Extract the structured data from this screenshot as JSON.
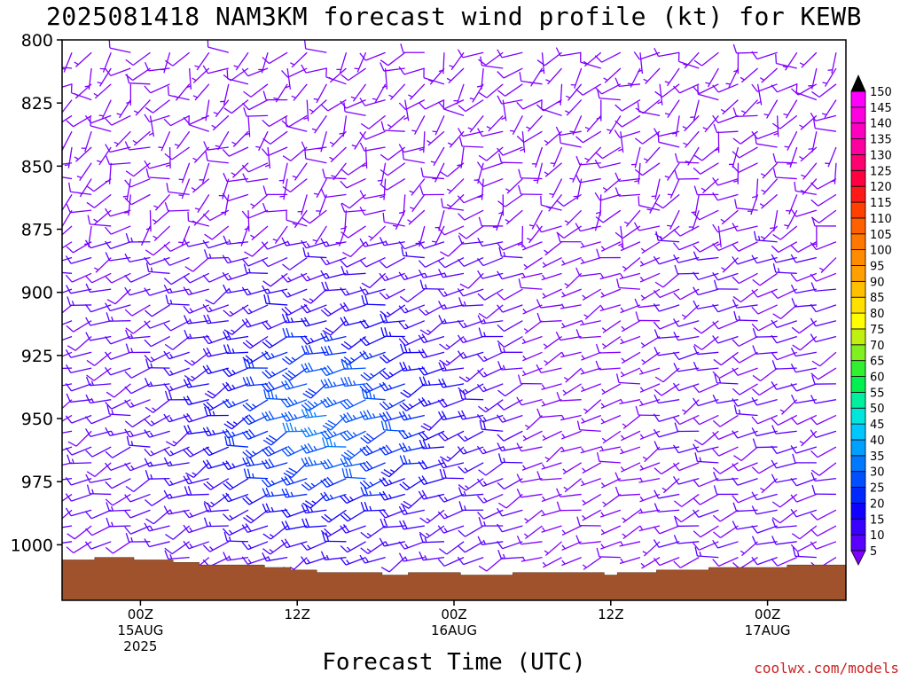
{
  "chart_data": {
    "type": "wind-barb-profile",
    "title": "2025081418 NAM3KM forecast wind profile (kt) for KEWB",
    "xlabel": "Forecast Time (UTC)",
    "ylabel": "",
    "y_ticks": [
      "800",
      "825",
      "850",
      "875",
      "900",
      "925",
      "950",
      "975",
      "1000"
    ],
    "y_range_hPa": [
      800,
      1022
    ],
    "x_ticks": [
      {
        "hour": 6,
        "lines": [
          "00Z",
          "15AUG",
          "2025"
        ]
      },
      {
        "hour": 18,
        "lines": [
          "12Z"
        ]
      },
      {
        "hour": 30,
        "lines": [
          "00Z",
          "16AUG"
        ]
      },
      {
        "hour": 42,
        "lines": [
          "12Z"
        ]
      },
      {
        "hour": 54,
        "lines": [
          "00Z",
          "17AUG"
        ]
      }
    ],
    "x_range_hours": [
      0,
      60
    ],
    "time_step_hours": 1.5,
    "pressure_step_hPa": 6.25,
    "colorbar": {
      "levels": [
        "5",
        "10",
        "15",
        "20",
        "25",
        "30",
        "35",
        "40",
        "45",
        "50",
        "55",
        "60",
        "65",
        "70",
        "75",
        "80",
        "85",
        "90",
        "95",
        "100",
        "105",
        "110",
        "115",
        "120",
        "125",
        "130",
        "135",
        "140",
        "145",
        "150"
      ],
      "colors": [
        "#7f00ff",
        "#5a00ff",
        "#3a00ff",
        "#1000ff",
        "#0028ff",
        "#0050ff",
        "#0078ff",
        "#00a0ff",
        "#00c8ff",
        "#00e6dc",
        "#00f0a0",
        "#00f050",
        "#30f030",
        "#80f020",
        "#c0f010",
        "#ffff00",
        "#ffe000",
        "#ffc000",
        "#ffa000",
        "#ff8c00",
        "#ff7800",
        "#ff6000",
        "#ff4000",
        "#ff1a1a",
        "#ff0040",
        "#ff0070",
        "#ff00a0",
        "#ff00c0",
        "#ff00e0",
        "#ff00ff"
      ]
    },
    "surface_pressure_hPa": [
      1006,
      1006,
      1006,
      1005,
      1005,
      1005,
      1006,
      1006,
      1006,
      1007,
      1007,
      1008,
      1008,
      1008,
      1008,
      1008,
      1009,
      1009,
      1010,
      1010,
      1011,
      1011,
      1011,
      1011,
      1011,
      1012,
      1012,
      1011,
      1011,
      1011,
      1011,
      1012,
      1012,
      1012,
      1012,
      1011,
      1011,
      1011,
      1011,
      1011,
      1011,
      1011,
      1012,
      1011,
      1011,
      1011,
      1010,
      1010,
      1010,
      1010,
      1009,
      1009,
      1009,
      1009,
      1009,
      1009,
      1008,
      1008,
      1008,
      1008,
      1008
    ],
    "wind_field": {
      "upper": {
        "direction_deg": 230,
        "speed_kt": [
          5,
          10
        ],
        "above_hPa": 880
      },
      "lower": {
        "direction_deg": 250,
        "speed_kt": [
          10,
          35
        ],
        "peak_hPa": 950,
        "peak_hour": 21
      },
      "evening_lull_hours": [
        36,
        46
      ]
    }
  },
  "labels": {
    "title": "2025081418 NAM3KM forecast wind profile (kt) for KEWB",
    "xlabel": "Forecast Time (UTC)",
    "credit": "coolwx.com/models"
  }
}
